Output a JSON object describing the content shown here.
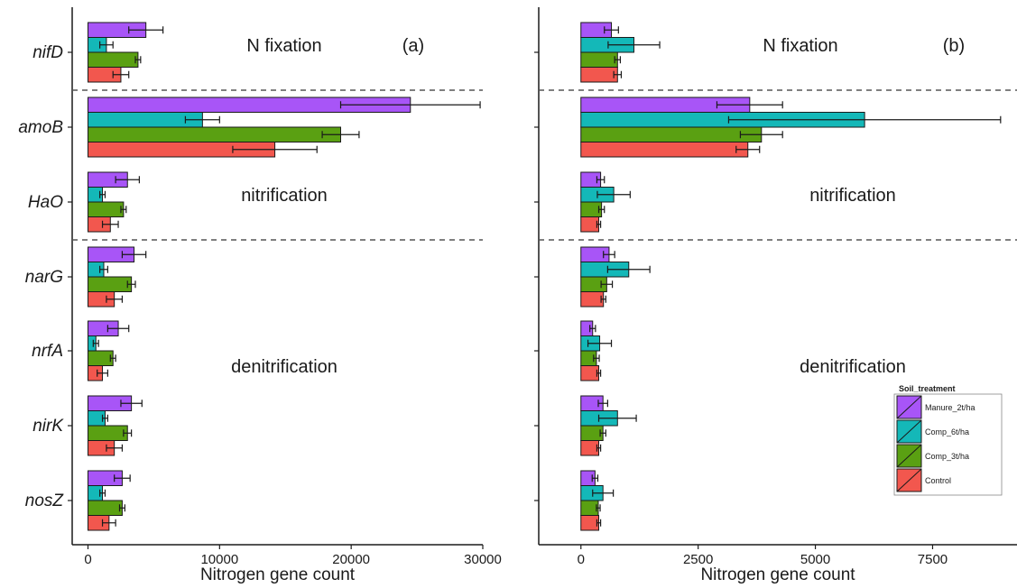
{
  "chart_data": [
    {
      "type": "bar",
      "orientation": "horizontal",
      "panel": "(a)",
      "xlabel": "Nitrogen gene count",
      "xlim": [
        -1200,
        30000
      ],
      "xticks": [
        0,
        10000,
        20000,
        30000
      ],
      "xtick_labels": [
        "0",
        "10000",
        "20000",
        "30000"
      ],
      "categories": [
        "nifD",
        "amoB",
        "HaO",
        "narG",
        "nrfA",
        "nirK",
        "nosZ"
      ],
      "series": [
        {
          "name": "Manure_2t/ha",
          "values": [
            4400,
            24500,
            3000,
            3500,
            2300,
            3300,
            2600
          ],
          "errors": [
            1300,
            5300,
            900,
            900,
            800,
            800,
            600
          ]
        },
        {
          "name": "Comp_6t/ha",
          "values": [
            1400,
            8700,
            1100,
            1200,
            600,
            1300,
            1100
          ],
          "errors": [
            500,
            1300,
            200,
            300,
            200,
            200,
            200
          ]
        },
        {
          "name": "Comp_3t/ha",
          "values": [
            3800,
            19200,
            2700,
            3300,
            1900,
            3000,
            2600
          ],
          "errors": [
            200,
            1400,
            200,
            300,
            200,
            300,
            200
          ]
        },
        {
          "name": "Control",
          "values": [
            2500,
            14200,
            1700,
            2000,
            1100,
            2000,
            1600
          ],
          "errors": [
            600,
            3200,
            600,
            600,
            400,
            600,
            500
          ]
        }
      ],
      "annotations": [
        {
          "text": "N fixation",
          "group": "nifD"
        },
        {
          "text": "(a)",
          "group": "nifD"
        },
        {
          "text": "nitrification",
          "group": "HaO"
        },
        {
          "text": "denitrification",
          "group": "nrfA"
        }
      ],
      "group_separators": [
        "nifD|amoB",
        "HaO|narG"
      ]
    },
    {
      "type": "bar",
      "orientation": "horizontal",
      "panel": "(b)",
      "xlabel": "Nitrogen gene count",
      "xlim": [
        -900,
        9300
      ],
      "xticks": [
        0,
        2500,
        5000,
        7500
      ],
      "xtick_labels": [
        "0",
        "2500",
        "5000",
        "7500"
      ],
      "categories": [
        "nifD",
        "amoB",
        "HaO",
        "narG",
        "nrfA",
        "nirK",
        "nosZ"
      ],
      "series": [
        {
          "name": "Manure_2t/ha",
          "values": [
            650,
            3600,
            420,
            600,
            250,
            470,
            300
          ],
          "errors": [
            150,
            700,
            80,
            120,
            60,
            100,
            60
          ]
        },
        {
          "name": "Comp_6t/ha",
          "values": [
            1130,
            6050,
            700,
            1020,
            400,
            780,
            470
          ],
          "errors": [
            550,
            2900,
            350,
            450,
            250,
            400,
            220
          ]
        },
        {
          "name": "Comp_3t/ha",
          "values": [
            780,
            3850,
            440,
            550,
            330,
            470,
            370
          ],
          "errors": [
            60,
            450,
            60,
            120,
            60,
            60,
            40
          ]
        },
        {
          "name": "Control",
          "values": [
            780,
            3560,
            380,
            480,
            380,
            380,
            380
          ],
          "errors": [
            80,
            250,
            40,
            50,
            40,
            40,
            40
          ]
        }
      ],
      "annotations": [
        {
          "text": "N fixation",
          "group": "nifD"
        },
        {
          "text": "(b)",
          "group": "nifD"
        },
        {
          "text": "nitrification",
          "group": "HaO"
        },
        {
          "text": "denitrification",
          "group": "nrfA"
        }
      ],
      "group_separators": [
        "nifD|amoB",
        "HaO|narG"
      ],
      "legend": {
        "title": "Soil_treatment",
        "placement": "bottom-right"
      }
    }
  ],
  "colors": {
    "Manure_2t/ha": "#A855F7",
    "Comp_6t/ha": "#14B8B8",
    "Comp_3t/ha": "#5AA012",
    "Control": "#F2574E"
  }
}
